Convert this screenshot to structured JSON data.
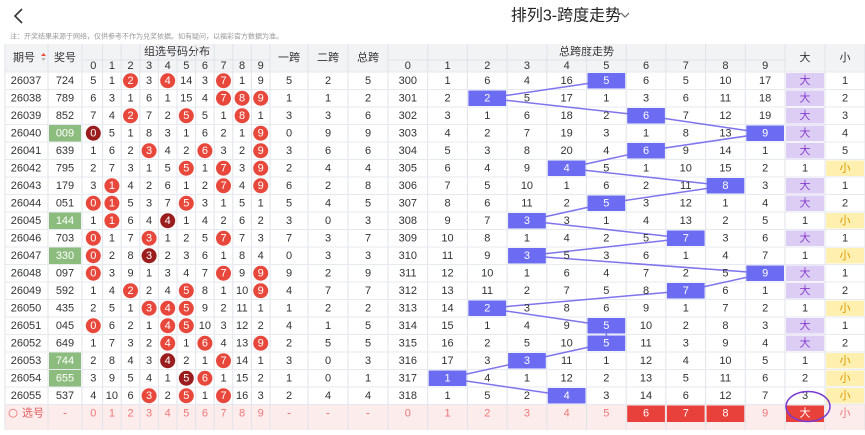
{
  "header": {
    "title": "排列3-跨度走势",
    "notice": "注：开奖结果来源于网络，仅供参考不作为兑奖依据。如有疑问，以福彩官方数据为准。"
  },
  "table": {
    "columns": {
      "issue": "期号",
      "number": "奖号",
      "dist": "组选号码分布",
      "span1": "一跨",
      "span2": "二跨",
      "span_total": "总跨",
      "trend": "总跨度走势",
      "big": "大",
      "small": "小"
    },
    "digits": [
      "0",
      "1",
      "2",
      "3",
      "4",
      "5",
      "6",
      "7",
      "8",
      "9"
    ],
    "rows": [
      {
        "issue": "26037",
        "number": "724",
        "dist": [
          5,
          1,
          2,
          3,
          4,
          14,
          3,
          7,
          1,
          9
        ],
        "span1": 5,
        "span2": 2,
        "span_total": 5,
        "trend": [
          300,
          1,
          6,
          4,
          16,
          5,
          6,
          5,
          10,
          17
        ],
        "big": "大",
        "small": "1"
      },
      {
        "issue": "26038",
        "number": "789",
        "dist": [
          6,
          3,
          1,
          6,
          1,
          15,
          4,
          7,
          8,
          9
        ],
        "span1": 1,
        "span2": 1,
        "span_total": 2,
        "trend": [
          301,
          2,
          2,
          5,
          17,
          1,
          3,
          6,
          11,
          18
        ],
        "big": "大",
        "small": "2"
      },
      {
        "issue": "26039",
        "number": "852",
        "dist": [
          7,
          4,
          2,
          7,
          2,
          5,
          5,
          1,
          8,
          1
        ],
        "span1": 3,
        "span2": 3,
        "span_total": 6,
        "trend": [
          302,
          3,
          1,
          6,
          18,
          2,
          6,
          7,
          12,
          19
        ],
        "big": "大",
        "small": "3"
      },
      {
        "issue": "26040",
        "number": "009",
        "dist": [
          0,
          5,
          1,
          8,
          3,
          1,
          6,
          2,
          1,
          9
        ],
        "span1": 0,
        "span2": 9,
        "span_total": 9,
        "trend": [
          303,
          4,
          2,
          7,
          19,
          3,
          1,
          8,
          13,
          9
        ],
        "big": "大",
        "small": "4"
      },
      {
        "issue": "26041",
        "number": "639",
        "dist": [
          1,
          6,
          2,
          3,
          4,
          2,
          6,
          3,
          2,
          9
        ],
        "span1": 3,
        "span2": 6,
        "span_total": 6,
        "trend": [
          304,
          5,
          3,
          8,
          20,
          4,
          6,
          9,
          14,
          1
        ],
        "big": "大",
        "small": "5"
      },
      {
        "issue": "26042",
        "number": "795",
        "dist": [
          2,
          7,
          3,
          1,
          5,
          5,
          1,
          7,
          3,
          9
        ],
        "span1": 2,
        "span2": 4,
        "span_total": 4,
        "trend": [
          305,
          6,
          4,
          9,
          4,
          5,
          1,
          10,
          15,
          2
        ],
        "big": "1",
        "small": "小"
      },
      {
        "issue": "26043",
        "number": "179",
        "dist": [
          3,
          1,
          4,
          2,
          6,
          1,
          2,
          7,
          4,
          9
        ],
        "span1": 6,
        "span2": 2,
        "span_total": 8,
        "trend": [
          306,
          7,
          5,
          10,
          1,
          6,
          2,
          11,
          8,
          3
        ],
        "big": "大",
        "small": "1"
      },
      {
        "issue": "26044",
        "number": "051",
        "dist": [
          0,
          1,
          5,
          3,
          7,
          5,
          3,
          1,
          5,
          1
        ],
        "span1": 5,
        "span2": 4,
        "span_total": 5,
        "trend": [
          307,
          8,
          6,
          11,
          2,
          5,
          3,
          12,
          1,
          4
        ],
        "big": "大",
        "small": "2"
      },
      {
        "issue": "26045",
        "number": "144",
        "dist": [
          1,
          1,
          6,
          4,
          4,
          1,
          4,
          2,
          6,
          2
        ],
        "span1": 3,
        "span2": 0,
        "span_total": 3,
        "trend": [
          308,
          9,
          7,
          3,
          3,
          1,
          4,
          13,
          2,
          5
        ],
        "big": "1",
        "small": "小"
      },
      {
        "issue": "26046",
        "number": "703",
        "dist": [
          0,
          1,
          7,
          3,
          1,
          2,
          5,
          7,
          7,
          3
        ],
        "span1": 7,
        "span2": 3,
        "span_total": 7,
        "trend": [
          309,
          10,
          8,
          1,
          4,
          2,
          5,
          7,
          3,
          6
        ],
        "big": "大",
        "small": "1"
      },
      {
        "issue": "26047",
        "number": "330",
        "dist": [
          0,
          2,
          8,
          3,
          2,
          3,
          6,
          1,
          8,
          4
        ],
        "span1": 0,
        "span2": 3,
        "span_total": 3,
        "trend": [
          310,
          11,
          9,
          3,
          5,
          3,
          6,
          1,
          4,
          7
        ],
        "big": "1",
        "small": "小"
      },
      {
        "issue": "26048",
        "number": "097",
        "dist": [
          0,
          3,
          9,
          1,
          3,
          4,
          7,
          7,
          9,
          9
        ],
        "span1": 9,
        "span2": 2,
        "span_total": 9,
        "trend": [
          311,
          12,
          10,
          1,
          6,
          4,
          7,
          2,
          5,
          9
        ],
        "big": "大",
        "small": "1"
      },
      {
        "issue": "26049",
        "number": "592",
        "dist": [
          1,
          4,
          2,
          2,
          4,
          5,
          8,
          1,
          10,
          9
        ],
        "span1": 4,
        "span2": 7,
        "span_total": 7,
        "trend": [
          312,
          13,
          11,
          2,
          7,
          5,
          8,
          7,
          6,
          1
        ],
        "big": "大",
        "small": "2"
      },
      {
        "issue": "26050",
        "number": "435",
        "dist": [
          2,
          5,
          1,
          3,
          4,
          5,
          9,
          2,
          11,
          1
        ],
        "span1": 1,
        "span2": 2,
        "span_total": 2,
        "trend": [
          313,
          14,
          2,
          3,
          8,
          6,
          9,
          1,
          7,
          2
        ],
        "big": "1",
        "small": "小"
      },
      {
        "issue": "26051",
        "number": "045",
        "dist": [
          0,
          6,
          2,
          1,
          4,
          5,
          10,
          3,
          12,
          2
        ],
        "span1": 4,
        "span2": 1,
        "span_total": 5,
        "trend": [
          314,
          15,
          1,
          4,
          9,
          5,
          10,
          2,
          8,
          3
        ],
        "big": "大",
        "small": "1"
      },
      {
        "issue": "26052",
        "number": "649",
        "dist": [
          1,
          7,
          3,
          2,
          4,
          1,
          6,
          4,
          13,
          9
        ],
        "span1": 2,
        "span2": 5,
        "span_total": 5,
        "trend": [
          315,
          16,
          2,
          5,
          10,
          5,
          11,
          3,
          9,
          4
        ],
        "big": "大",
        "small": "2"
      },
      {
        "issue": "26053",
        "number": "744",
        "dist": [
          2,
          8,
          4,
          3,
          4,
          2,
          1,
          7,
          14,
          1
        ],
        "span1": 3,
        "span2": 0,
        "span_total": 3,
        "trend": [
          316,
          17,
          3,
          3,
          11,
          1,
          12,
          4,
          10,
          5
        ],
        "big": "1",
        "small": "小"
      },
      {
        "issue": "26054",
        "number": "655",
        "dist": [
          3,
          9,
          5,
          4,
          1,
          5,
          6,
          1,
          15,
          2
        ],
        "span1": 1,
        "span2": 0,
        "span_total": 1,
        "trend": [
          317,
          1,
          4,
          1,
          12,
          2,
          13,
          5,
          11,
          6
        ],
        "big": "2",
        "small": "小"
      },
      {
        "issue": "26055",
        "number": "537",
        "dist": [
          4,
          10,
          6,
          3,
          2,
          5,
          1,
          7,
          16,
          3
        ],
        "span1": 2,
        "span2": 4,
        "span_total": 4,
        "trend": [
          318,
          1,
          5,
          2,
          4,
          3,
          14,
          6,
          12,
          7
        ],
        "big": "3",
        "small": "小"
      }
    ],
    "pick_row": {
      "label": "选号",
      "number": "-",
      "span1": "-",
      "span2": "-",
      "span_total": "-",
      "selected_trend": [
        6,
        7,
        8
      ],
      "selected_big": true
    }
  }
}
